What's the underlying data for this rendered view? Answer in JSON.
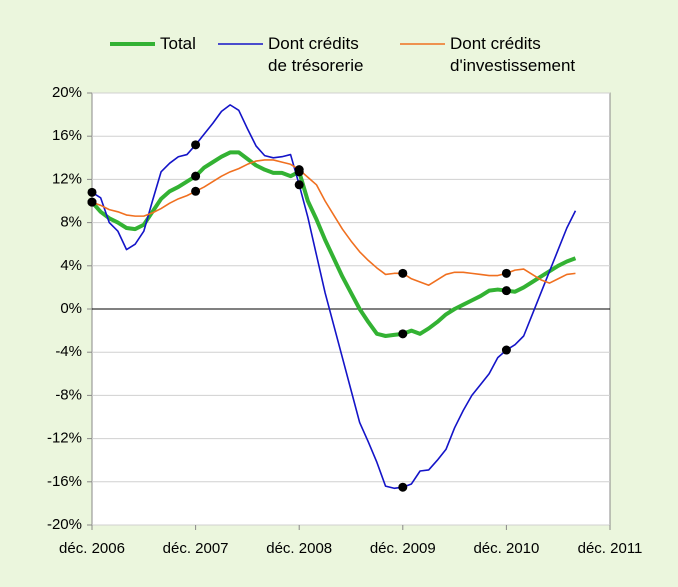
{
  "chart_data": {
    "type": "line",
    "x": [
      "2006-12",
      "2007-01",
      "2007-02",
      "2007-03",
      "2007-04",
      "2007-05",
      "2007-06",
      "2007-07",
      "2007-08",
      "2007-09",
      "2007-10",
      "2007-11",
      "2007-12",
      "2008-01",
      "2008-02",
      "2008-03",
      "2008-04",
      "2008-05",
      "2008-06",
      "2008-07",
      "2008-08",
      "2008-09",
      "2008-10",
      "2008-11",
      "2008-12",
      "2009-01",
      "2009-02",
      "2009-03",
      "2009-04",
      "2009-05",
      "2009-06",
      "2009-07",
      "2009-08",
      "2009-09",
      "2009-10",
      "2009-11",
      "2009-12",
      "2010-01",
      "2010-02",
      "2010-03",
      "2010-04",
      "2010-05",
      "2010-06",
      "2010-07",
      "2010-08",
      "2010-09",
      "2010-10",
      "2010-11",
      "2010-12",
      "2011-01",
      "2011-02",
      "2011-03",
      "2011-04",
      "2011-05",
      "2011-06",
      "2011-07",
      "2011-08"
    ],
    "series": [
      {
        "name": "Total",
        "color": "#33b233",
        "values": [
          9.9,
          9.0,
          8.4,
          8.0,
          7.5,
          7.4,
          7.8,
          9.0,
          10.2,
          10.9,
          11.3,
          11.8,
          12.3,
          13.1,
          13.6,
          14.1,
          14.5,
          14.5,
          13.9,
          13.3,
          12.9,
          12.6,
          12.6,
          12.3,
          12.7,
          10.0,
          8.3,
          6.4,
          4.7,
          3.0,
          1.5,
          0.0,
          -1.2,
          -2.3,
          -2.5,
          -2.4,
          -2.3,
          -2.0,
          -2.3,
          -1.8,
          -1.2,
          -0.5,
          0.0,
          0.4,
          0.8,
          1.2,
          1.7,
          1.8,
          1.7,
          1.6,
          2.0,
          2.5,
          3.0,
          3.5,
          4.0,
          4.4,
          4.7
        ]
      },
      {
        "name": "Dont crédits\nde trésorerie",
        "color": "#1414c8",
        "values": [
          10.8,
          10.3,
          8.0,
          7.2,
          5.5,
          6.0,
          7.2,
          10.0,
          12.7,
          13.5,
          14.1,
          14.3,
          15.2,
          16.2,
          17.2,
          18.3,
          18.9,
          18.4,
          16.7,
          15.1,
          14.2,
          14.0,
          14.1,
          14.3,
          11.5,
          8.5,
          5.0,
          1.5,
          -1.5,
          -4.5,
          -7.5,
          -10.5,
          -12.3,
          -14.2,
          -16.4,
          -16.6,
          -16.5,
          -16.2,
          -15.0,
          -14.9,
          -14.0,
          -13.0,
          -11.0,
          -9.4,
          -8.0,
          -7.0,
          -6.0,
          -4.5,
          -3.8,
          -3.3,
          -2.5,
          -0.5,
          1.5,
          3.5,
          5.5,
          7.5,
          9.1
        ]
      },
      {
        "name": "Dont crédits\nd'investissement",
        "color": "#f07020",
        "values": [
          9.9,
          9.6,
          9.2,
          9.0,
          8.7,
          8.6,
          8.6,
          8.9,
          9.3,
          9.8,
          10.2,
          10.5,
          10.9,
          11.3,
          11.8,
          12.3,
          12.7,
          13.0,
          13.4,
          13.7,
          13.8,
          13.8,
          13.6,
          13.4,
          12.9,
          12.2,
          11.5,
          10.0,
          8.7,
          7.4,
          6.3,
          5.3,
          4.5,
          3.8,
          3.2,
          3.3,
          3.3,
          2.8,
          2.5,
          2.2,
          2.7,
          3.2,
          3.4,
          3.4,
          3.3,
          3.2,
          3.1,
          3.1,
          3.3,
          3.6,
          3.7,
          3.2,
          2.7,
          2.4,
          2.8,
          3.2,
          3.3
        ]
      }
    ],
    "xlim": [
      "2006-12",
      "2011-12"
    ],
    "xticks": [
      {
        "value": "2006-12",
        "label": "déc. 2006"
      },
      {
        "value": "2007-12",
        "label": "déc. 2007"
      },
      {
        "value": "2008-12",
        "label": "déc. 2008"
      },
      {
        "value": "2009-12",
        "label": "déc. 2009"
      },
      {
        "value": "2010-12",
        "label": "déc. 2010"
      },
      {
        "value": "2011-12",
        "label": "déc. 2011"
      }
    ],
    "ylim": [
      -20,
      20
    ],
    "yticks": [
      {
        "value": -20,
        "label": "-20%"
      },
      {
        "value": -16,
        "label": "-16%"
      },
      {
        "value": -12,
        "label": "-12%"
      },
      {
        "value": -8,
        "label": "-8%"
      },
      {
        "value": -4,
        "label": "-4%"
      },
      {
        "value": 0,
        "label": "0%"
      },
      {
        "value": 4,
        "label": "4%"
      },
      {
        "value": 8,
        "label": "8%"
      },
      {
        "value": 12,
        "label": "12%"
      },
      {
        "value": 16,
        "label": "16%"
      },
      {
        "value": 20,
        "label": "20%"
      }
    ],
    "grid": true,
    "legend": "top"
  }
}
